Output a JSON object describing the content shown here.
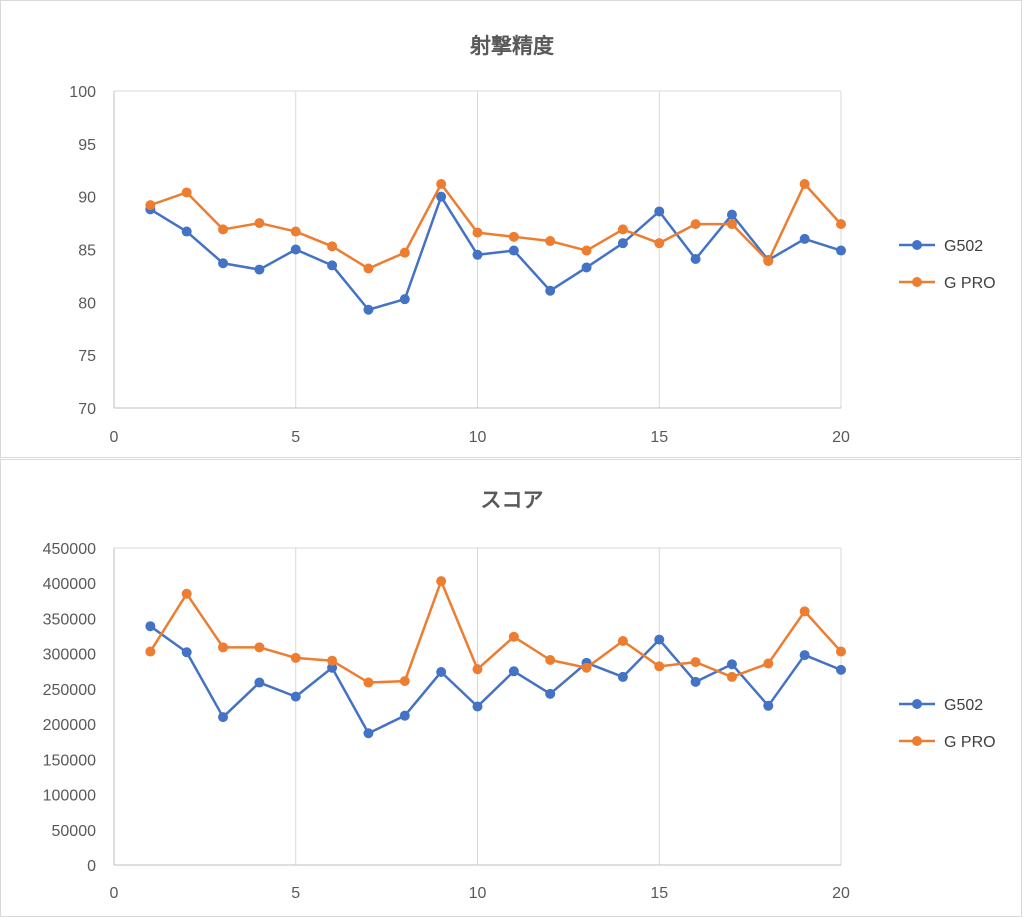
{
  "chart_data": [
    {
      "type": "scatter",
      "title": "射撃精度",
      "xlim": [
        0,
        20
      ],
      "ylim": [
        70,
        100
      ],
      "xticks": [
        "0",
        "5",
        "10",
        "15",
        "20"
      ],
      "yticks": [
        "70",
        "75",
        "80",
        "85",
        "90",
        "95",
        "100"
      ],
      "xtick_values": [
        0,
        5,
        10,
        15,
        20
      ],
      "ytick_values": [
        70,
        75,
        80,
        85,
        90,
        95,
        100
      ],
      "grid": "vertical",
      "legend": "right",
      "x": [
        1,
        2,
        3,
        4,
        5,
        6,
        7,
        8,
        9,
        10,
        11,
        12,
        13,
        14,
        15,
        16,
        17,
        18,
        19,
        20
      ],
      "series": [
        {
          "name": "G502",
          "color": "#4472c4",
          "values": [
            88.8,
            86.7,
            83.7,
            83.1,
            85.0,
            83.5,
            79.3,
            80.3,
            90.0,
            84.5,
            84.9,
            81.1,
            83.3,
            85.6,
            88.6,
            84.1,
            88.3,
            84.0,
            86.0,
            84.9
          ]
        },
        {
          "name": "G PRO",
          "color": "#ed7d31",
          "values": [
            89.2,
            90.4,
            86.9,
            87.5,
            86.7,
            85.3,
            83.2,
            84.7,
            91.2,
            86.6,
            86.2,
            85.8,
            84.9,
            86.9,
            85.6,
            87.4,
            87.4,
            83.9,
            91.2,
            87.4
          ]
        }
      ]
    },
    {
      "type": "scatter",
      "title": "スコア",
      "xlim": [
        0,
        20
      ],
      "ylim": [
        0,
        450000
      ],
      "xticks": [
        "0",
        "5",
        "10",
        "15",
        "20"
      ],
      "yticks": [
        "0",
        "50000",
        "100000",
        "150000",
        "200000",
        "250000",
        "300000",
        "350000",
        "400000",
        "450000"
      ],
      "xtick_values": [
        0,
        5,
        10,
        15,
        20
      ],
      "ytick_values": [
        0,
        50000,
        100000,
        150000,
        200000,
        250000,
        300000,
        350000,
        400000,
        450000
      ],
      "grid": "vertical",
      "legend": "right",
      "x": [
        1,
        2,
        3,
        4,
        5,
        6,
        7,
        8,
        9,
        10,
        11,
        12,
        13,
        14,
        15,
        16,
        17,
        18,
        19,
        20
      ],
      "series": [
        {
          "name": "G502",
          "color": "#4472c4",
          "values": [
            339000,
            302000,
            210000,
            259000,
            239000,
            280000,
            187000,
            212000,
            274000,
            225000,
            275000,
            243000,
            287000,
            267000,
            320000,
            260000,
            285000,
            226000,
            298000,
            277000
          ]
        },
        {
          "name": "G PRO",
          "color": "#ed7d31",
          "values": [
            303000,
            385000,
            309000,
            309000,
            294000,
            290000,
            259000,
            261000,
            403000,
            278000,
            324000,
            291000,
            280000,
            318000,
            282000,
            288000,
            267000,
            286000,
            360000,
            303000
          ]
        }
      ]
    }
  ]
}
